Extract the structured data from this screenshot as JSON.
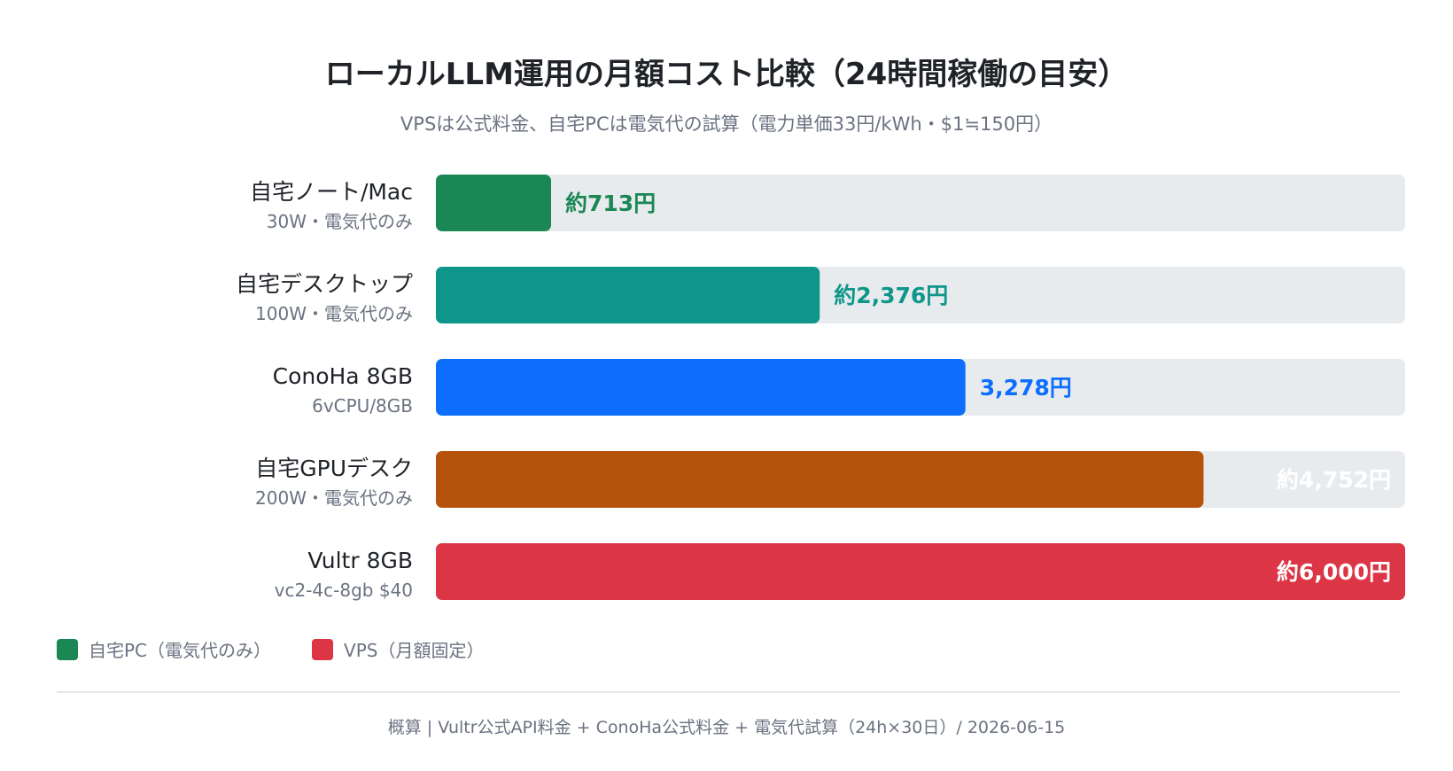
{
  "page": {
    "title": "ローカルLLM運用の月額コスト比較（24時間稼働の目安）",
    "subtitle": "VPSは公式料金、自宅PCは電気代の試算（電力単価33円/kWh・$1≒150円）",
    "footer": "概算 | Vultr公式API料金 + ConoHa公式料金 + 電気代試算（24h×30日）/ 2026-06-15"
  },
  "legend": [
    {
      "label": "自宅PC（電気代のみ）",
      "color": "#1a8754"
    },
    {
      "label": "VPS（月額固定）",
      "color": "#dc3545"
    }
  ],
  "chart_data": {
    "type": "bar",
    "orientation": "horizontal",
    "title": "ローカルLLM運用の月額コスト比較（24時間稼働の目安）",
    "subtitle": "VPSは公式料金、自宅PCは電気代の試算（電力単価33円/kWh・$1≒150円）",
    "unit": "円",
    "xlim": [
      0,
      6000
    ],
    "grid": false,
    "legend_position": "bottom-left",
    "categories": [
      "自宅ノート/Mac",
      "自宅デスクトップ",
      "ConoHa 8GB",
      "自宅GPUデスク",
      "Vultr 8GB"
    ],
    "sublabels": [
      "30W・電気代のみ",
      "100W・電気代のみ",
      "6vCPU/8GB",
      "200W・電気代のみ",
      "vc2-4c-8gb $40"
    ],
    "values": [
      713,
      2376,
      3278,
      4752,
      6000
    ],
    "value_labels": [
      "約713円",
      "約2,376円",
      "3,278円",
      "約4,752円",
      "約6,000円"
    ],
    "colors": [
      "#1a8754",
      "#0f968a",
      "#0d6efd",
      "#b5520b",
      "#dc3545"
    ]
  }
}
